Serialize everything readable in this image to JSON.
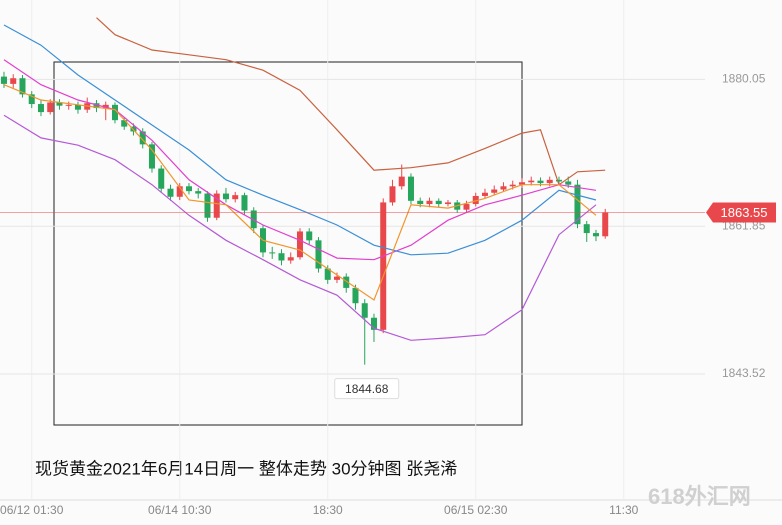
{
  "chart_data": {
    "type": "candlestick",
    "title": "现货黄金2021年6月14日周一  整体走势 30分钟图  张尧浠",
    "watermark": "618外汇网",
    "up_color": "#e8484b",
    "down_color": "#26a55c",
    "x": [
      0,
      1,
      2,
      3,
      4,
      5,
      6,
      7,
      8,
      9,
      10,
      11,
      12,
      13,
      14,
      15,
      16,
      17,
      18,
      19,
      20,
      21,
      22,
      23,
      24,
      25,
      26,
      27,
      28,
      29,
      30,
      31,
      32,
      33,
      34,
      35,
      36,
      37,
      38,
      39,
      40,
      41,
      42,
      43,
      44,
      45,
      46,
      47,
      48,
      49,
      50,
      51,
      52,
      53,
      54,
      55,
      56,
      57,
      58,
      59,
      60,
      61,
      62,
      63,
      64,
      65
    ],
    "open": [
      1880.4,
      1879.5,
      1880.2,
      1878.2,
      1877.0,
      1876.0,
      1877.2,
      1876.8,
      1876.9,
      1876.3,
      1877.1,
      1876.5,
      1876.9,
      1875.0,
      1874.2,
      1873.6,
      1872.0,
      1869.0,
      1866.5,
      1865.5,
      1866.8,
      1866.2,
      1865.9,
      1862.9,
      1865.9,
      1865.2,
      1865.7,
      1863.8,
      1861.6,
      1858.6,
      1858.5,
      1857.6,
      1858.0,
      1861.2,
      1860.1,
      1856.6,
      1855.2,
      1855.6,
      1854.2,
      1852.3,
      1850.5,
      1849.0,
      1864.8,
      1866.8,
      1868.0,
      1865.0,
      1864.6,
      1865.0,
      1864.6,
      1864.8,
      1863.9,
      1864.6,
      1865.6,
      1866.0,
      1866.4,
      1866.8,
      1867.0,
      1867.3,
      1867.5,
      1867.2,
      1867.6,
      1867.4,
      1867.0,
      1862.1,
      1861.0,
      1860.6
    ],
    "high": [
      1881.0,
      1880.7,
      1880.6,
      1878.6,
      1877.5,
      1877.6,
      1877.6,
      1877.3,
      1877.3,
      1877.8,
      1877.5,
      1877.3,
      1877.2,
      1875.4,
      1874.6,
      1874.0,
      1872.3,
      1869.4,
      1867.0,
      1867.2,
      1867.2,
      1866.6,
      1866.2,
      1866.3,
      1866.6,
      1866.1,
      1866.0,
      1864.2,
      1862.0,
      1859.3,
      1859.0,
      1858.6,
      1861.6,
      1861.6,
      1860.5,
      1857.0,
      1856.1,
      1856.0,
      1854.6,
      1852.8,
      1851.0,
      1865.3,
      1867.6,
      1869.5,
      1868.4,
      1865.4,
      1865.4,
      1865.3,
      1865.1,
      1865.1,
      1865.0,
      1866.0,
      1866.5,
      1866.9,
      1867.3,
      1867.5,
      1867.8,
      1868.0,
      1867.9,
      1868.0,
      1868.0,
      1868.0,
      1867.6,
      1862.5,
      1861.4,
      1864.0
    ],
    "low": [
      1879.0,
      1879.0,
      1877.8,
      1876.5,
      1875.5,
      1875.7,
      1876.3,
      1876.3,
      1875.8,
      1875.9,
      1876.0,
      1875.0,
      1874.6,
      1873.8,
      1873.1,
      1871.5,
      1868.5,
      1866.0,
      1865.0,
      1865.1,
      1865.8,
      1865.3,
      1862.4,
      1862.6,
      1864.8,
      1864.8,
      1863.3,
      1861.0,
      1858.0,
      1857.8,
      1857.0,
      1857.2,
      1857.7,
      1859.6,
      1856.1,
      1854.7,
      1854.8,
      1853.6,
      1851.5,
      1844.68,
      1847.5,
      1848.6,
      1864.4,
      1866.4,
      1864.6,
      1864.2,
      1864.2,
      1864.2,
      1864.3,
      1863.5,
      1863.6,
      1864.3,
      1865.3,
      1865.7,
      1866.1,
      1866.4,
      1866.6,
      1866.9,
      1866.8,
      1866.8,
      1867.0,
      1866.6,
      1861.6,
      1859.9,
      1860.0,
      1860.3
    ],
    "close": [
      1879.5,
      1880.2,
      1878.2,
      1877.0,
      1876.0,
      1877.2,
      1876.8,
      1876.9,
      1876.3,
      1877.1,
      1876.5,
      1876.9,
      1875.0,
      1874.2,
      1873.6,
      1872.0,
      1869.0,
      1866.5,
      1865.5,
      1866.8,
      1866.2,
      1865.9,
      1862.9,
      1865.9,
      1865.2,
      1865.7,
      1863.8,
      1861.6,
      1858.6,
      1858.5,
      1857.6,
      1858.0,
      1861.2,
      1860.1,
      1856.6,
      1855.2,
      1855.6,
      1854.2,
      1852.3,
      1850.5,
      1849.0,
      1864.8,
      1866.8,
      1868.0,
      1865.0,
      1864.6,
      1865.0,
      1864.6,
      1864.8,
      1863.9,
      1864.6,
      1865.6,
      1866.0,
      1866.4,
      1866.8,
      1867.0,
      1867.3,
      1867.5,
      1867.2,
      1867.6,
      1867.4,
      1867.0,
      1862.1,
      1861.0,
      1860.6,
      1863.55
    ],
    "lines": [
      {
        "color": "#c8623f",
        "x": [
          10,
          12,
          16,
          20,
          24,
          28,
          32,
          36,
          40,
          44,
          48,
          52,
          56,
          58,
          60,
          62,
          65
        ],
        "values": [
          1887.7,
          1885.6,
          1883.7,
          1883.1,
          1882.5,
          1881.2,
          1878.7,
          1873.8,
          1868.8,
          1869.1,
          1869.7,
          1871.5,
          1873.4,
          1873.8,
          1867.0,
          1868.6,
          1868.8
        ]
      },
      {
        "color": "#b45ad6",
        "x": [
          0,
          4,
          8,
          12,
          16,
          20,
          24,
          28,
          32,
          36,
          40,
          44,
          48,
          52,
          56,
          60,
          64
        ],
        "values": [
          1875.6,
          1872.8,
          1871.9,
          1870.1,
          1867.0,
          1863.2,
          1860.1,
          1857.7,
          1855.2,
          1853.3,
          1849.2,
          1847.7,
          1848.0,
          1848.4,
          1851.5,
          1860.8,
          1864.5
        ]
      },
      {
        "color": "#e23fd0",
        "x": [
          0,
          4,
          8,
          12,
          16,
          20,
          24,
          28,
          32,
          36,
          40,
          44,
          48,
          52,
          56,
          60,
          64
        ],
        "values": [
          1882.5,
          1879.4,
          1877.5,
          1876.3,
          1872.5,
          1867.6,
          1864.5,
          1862.0,
          1860.1,
          1857.9,
          1857.7,
          1859.5,
          1862.6,
          1864.5,
          1865.7,
          1867.0,
          1866.3
        ]
      },
      {
        "color": "#3b8fd6",
        "x": [
          0,
          4,
          8,
          12,
          16,
          20,
          24,
          28,
          32,
          36,
          40,
          44,
          48,
          52,
          56,
          60,
          64
        ],
        "values": [
          1886.8,
          1884.3,
          1880.6,
          1877.5,
          1874.4,
          1871.3,
          1867.6,
          1865.7,
          1863.9,
          1862.0,
          1859.5,
          1858.3,
          1858.5,
          1860.1,
          1862.6,
          1866.3,
          1865.1
        ]
      },
      {
        "color": "#f0962b",
        "x": [
          0,
          4,
          8,
          12,
          16,
          20,
          24,
          28,
          32,
          36,
          40,
          44,
          48,
          52,
          56,
          60,
          64
        ],
        "values": [
          1879.4,
          1877.5,
          1876.9,
          1876.3,
          1871.3,
          1865.1,
          1864.5,
          1860.1,
          1858.9,
          1855.8,
          1852.7,
          1864.5,
          1864.1,
          1865.3,
          1867.0,
          1867.0,
          1863.2
        ]
      }
    ],
    "xlim": [
      -0.43,
      84.11
    ],
    "ylim": [
      1827.9,
      1889.9
    ],
    "xticks": [
      {
        "value": 3,
        "label": "06/12 01:30"
      },
      {
        "value": 19,
        "label": "06/14 10:30"
      },
      {
        "value": 35,
        "label": "18:30"
      },
      {
        "value": 51,
        "label": "06/15 02:30"
      },
      {
        "value": 67,
        "label": "11:30"
      }
    ],
    "yticks": [
      1880.05,
      1861.85,
      1843.52
    ],
    "grid": true,
    "last_price": 1863.55,
    "last_price_color": "#e8484b"
  }
}
